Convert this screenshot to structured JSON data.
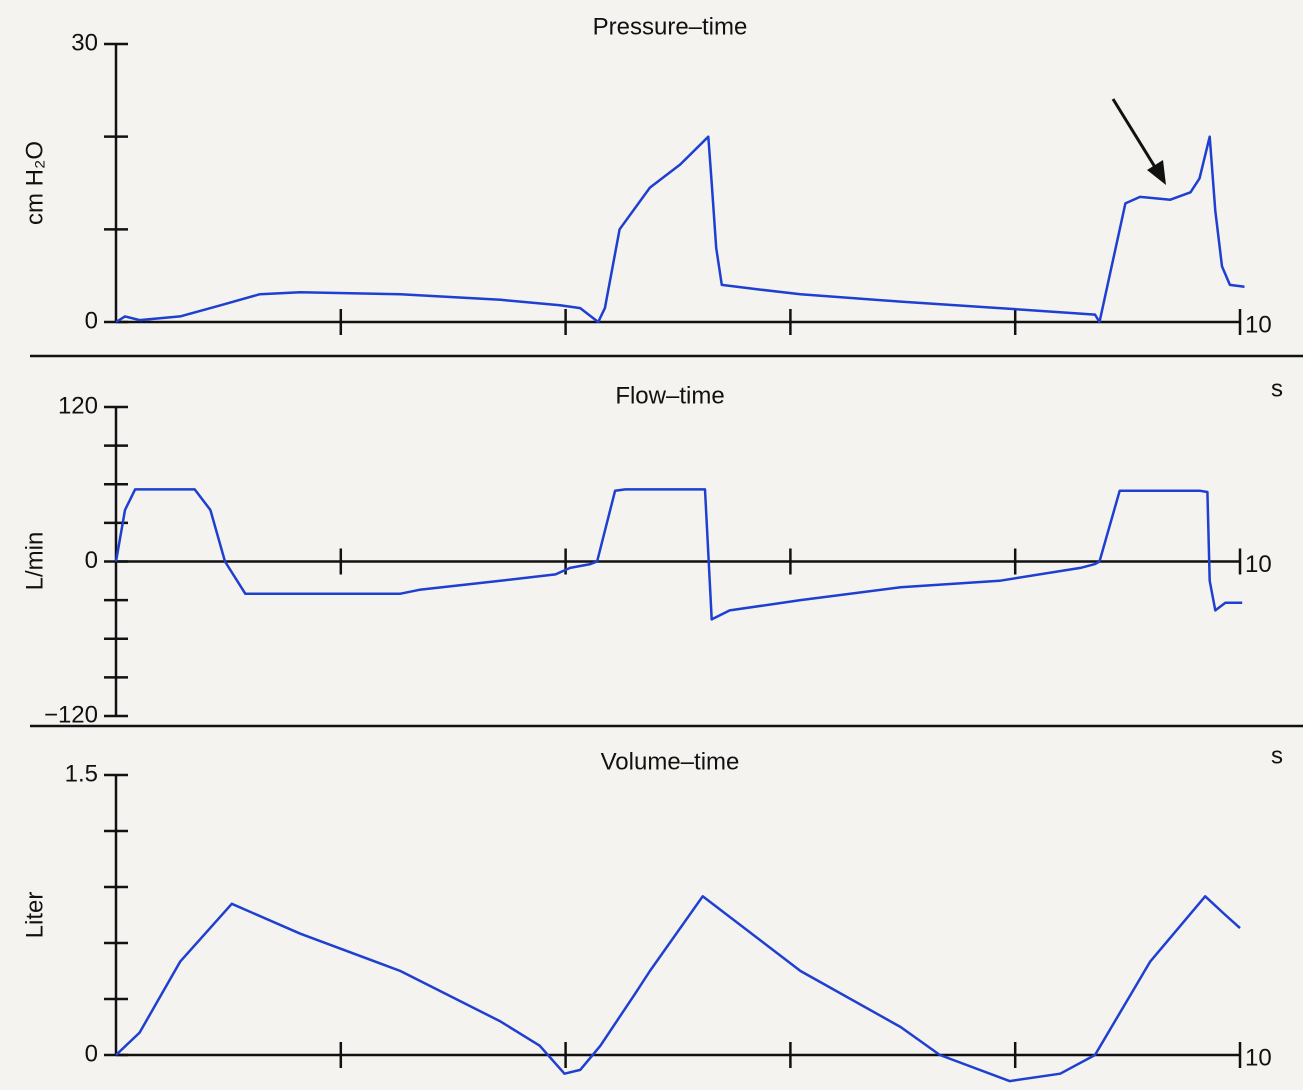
{
  "chart_data": [
    {
      "type": "line",
      "title": "Pressure–time",
      "ylabel": "cm H₂O",
      "xlabel": "s",
      "color": "#1f3fd0",
      "xlim": [
        0,
        10
      ],
      "xticks": [
        {
          "value": 2,
          "label": null
        },
        {
          "value": 4,
          "label": null
        },
        {
          "value": 6,
          "label": null
        },
        {
          "value": 8,
          "label": null
        },
        10
      ],
      "ylim": [
        0,
        30
      ],
      "yticks": [
        0,
        {
          "value": 10,
          "label": null
        },
        {
          "value": 20,
          "label": null
        },
        30
      ],
      "x": [
        0,
        0.08,
        0.21,
        0.57,
        0.93,
        1.28,
        1.64,
        2.53,
        3.42,
        3.95,
        4.13,
        4.29,
        4.35,
        4.48,
        4.75,
        5.02,
        5.27,
        5.3,
        5.34,
        5.39,
        5.73,
        6.09,
        6.98,
        7.86,
        8.71,
        8.75,
        8.84,
        8.98,
        9.11,
        9.38,
        9.56,
        9.64,
        9.73,
        9.78,
        9.84,
        9.91,
        10.04
      ],
      "values": [
        0,
        0.6,
        0.2,
        0.6,
        1.8,
        3.0,
        3.2,
        3.0,
        2.4,
        1.8,
        1.5,
        0,
        1.5,
        10,
        14.5,
        17,
        20,
        15,
        8,
        4,
        3.5,
        3.0,
        2.2,
        1.5,
        0.8,
        0,
        5,
        12.8,
        13.5,
        13.2,
        14,
        15.5,
        20,
        12,
        6,
        4,
        3.8
      ]
    },
    {
      "type": "line",
      "title": "Flow–time",
      "ylabel": "L/min",
      "xlabel": "s",
      "color": "#1f3fd0",
      "xlim": [
        0,
        10
      ],
      "xticks": [
        {
          "value": 2,
          "label": null
        },
        {
          "value": 4,
          "label": null
        },
        {
          "value": 6,
          "label": null
        },
        {
          "value": 8,
          "label": null
        },
        10
      ],
      "ylim": [
        -120,
        120
      ],
      "yticks": [
        {
          "value": -120,
          "label": "−120"
        },
        {
          "value": -90,
          "label": null
        },
        {
          "value": -60,
          "label": null
        },
        {
          "value": -30,
          "label": null
        },
        0,
        {
          "value": 30,
          "label": null
        },
        {
          "value": 60,
          "label": null
        },
        {
          "value": 90,
          "label": null
        },
        120
      ],
      "x": [
        0,
        0.08,
        0.17,
        0.7,
        0.84,
        0.97,
        1.15,
        2.53,
        2.7,
        3.42,
        3.91,
        4.04,
        4.22,
        4.28,
        4.44,
        4.53,
        5.24,
        5.3,
        5.46,
        6.09,
        6.98,
        7.86,
        8.58,
        8.71,
        8.75,
        8.93,
        9.64,
        9.71,
        9.73,
        9.78,
        9.87,
        10.02
      ],
      "values": [
        0,
        40,
        56,
        56,
        40,
        0,
        -25,
        -25,
        -22,
        -15,
        -10,
        -5,
        -2,
        0,
        55,
        56,
        56,
        -45,
        -38,
        -30,
        -20,
        -15,
        -5,
        -2,
        0,
        55,
        55,
        54,
        -15,
        -38,
        -32,
        -32
      ]
    },
    {
      "type": "line",
      "title": "Volume–time",
      "ylabel": "Liter",
      "color": "#1f3fd0",
      "xlim": [
        0,
        10
      ],
      "xticks": [
        {
          "value": 2,
          "label": null
        },
        {
          "value": 4,
          "label": null
        },
        {
          "value": 6,
          "label": null
        },
        {
          "value": 8,
          "label": null
        },
        10
      ],
      "ylim": [
        0,
        1.5
      ],
      "yticks": [
        0,
        {
          "value": 0.3,
          "label": null
        },
        {
          "value": 0.6,
          "label": null
        },
        {
          "value": 0.9,
          "label": null
        },
        {
          "value": 1.2,
          "label": null
        },
        1.5
      ],
      "x": [
        0,
        0.21,
        0.57,
        1.03,
        1.64,
        2.53,
        3.42,
        3.77,
        3.99,
        4.13,
        4.31,
        4.62,
        4.75,
        5.22,
        6.09,
        6.98,
        7.33,
        7.95,
        8.4,
        8.71,
        9.2,
        9.69,
        9.87,
        10.0
      ],
      "values": [
        0,
        0.12,
        0.5,
        0.81,
        0.65,
        0.45,
        0.18,
        0.05,
        -0.1,
        -0.08,
        0.05,
        0.33,
        0.45,
        0.85,
        0.45,
        0.15,
        0,
        -0.14,
        -0.1,
        0,
        0.5,
        0.85,
        0.75,
        0.68
      ]
    }
  ]
}
